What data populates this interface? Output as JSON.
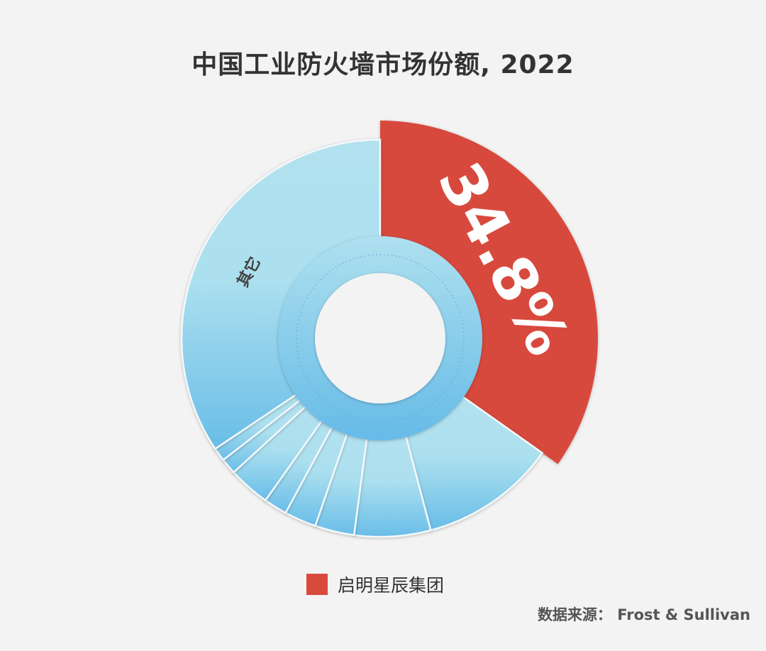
{
  "chart_data": {
    "type": "pie",
    "subtype": "donut",
    "title": "中国工业防火墙市场份额, 2022",
    "slices": [
      {
        "label": "启明星辰集团",
        "value": 34.8,
        "color": "#d84a3c",
        "display": "34.8%"
      },
      {
        "label": "",
        "value": 11.1,
        "color": "#7fc6ea"
      },
      {
        "label": "",
        "value": 6.2,
        "color": "#7fc6ea"
      },
      {
        "label": "",
        "value": 3.2,
        "color": "#7fc6ea"
      },
      {
        "label": "",
        "value": 2.6,
        "color": "#7fc6ea"
      },
      {
        "label": "",
        "value": 1.9,
        "color": "#7fc6ea"
      },
      {
        "label": "",
        "value": 3.4,
        "color": "#7fc6ea"
      },
      {
        "label": "",
        "value": 1.3,
        "color": "#7fc6ea"
      },
      {
        "label": "",
        "value": 1.1,
        "color": "#7fc6ea"
      },
      {
        "label": "其它",
        "value": 34.4,
        "color": "#aedfef"
      }
    ],
    "legend": {
      "position": "bottom",
      "entries": [
        {
          "label": "启明星辰集团",
          "color": "#d84a3c"
        }
      ]
    },
    "source": "数据来源： Frost & Sullivan"
  }
}
